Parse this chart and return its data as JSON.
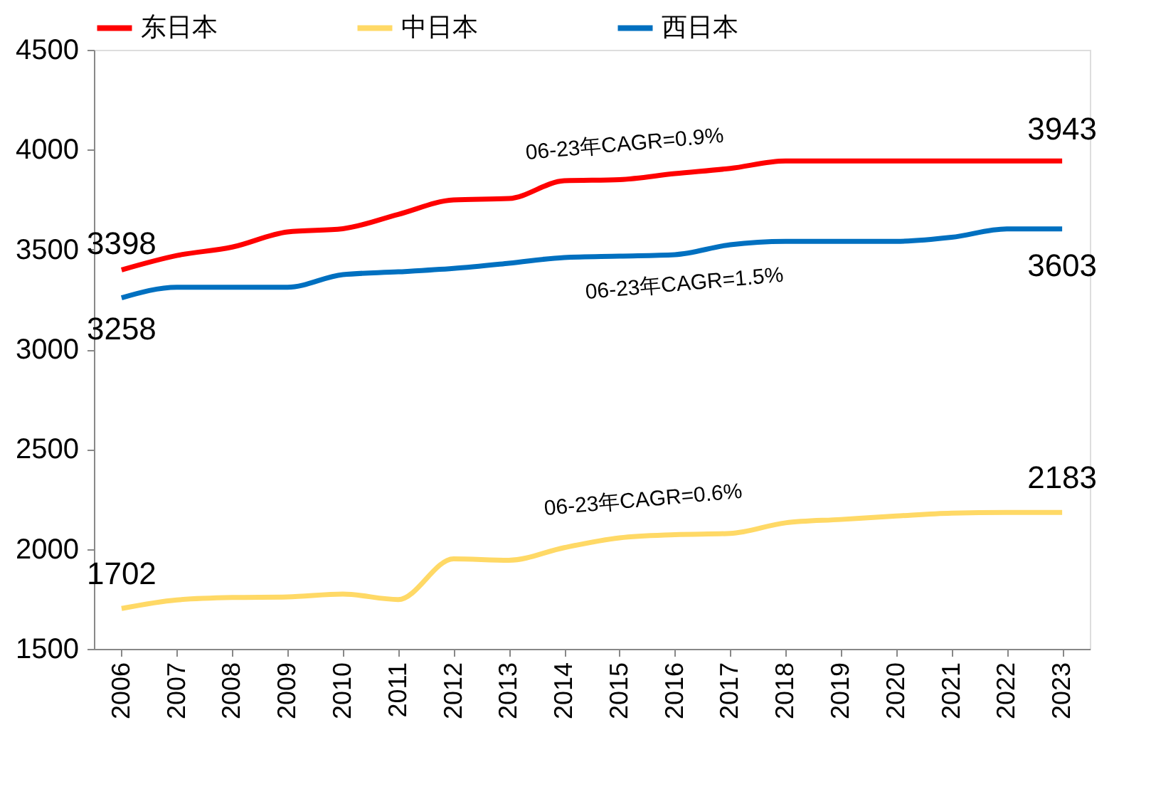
{
  "chart_data": {
    "type": "line",
    "categories": [
      "2006",
      "2007",
      "2008",
      "2009",
      "2010",
      "2011",
      "2012",
      "2013",
      "2014",
      "2015",
      "2016",
      "2017",
      "2018",
      "2019",
      "2020",
      "2021",
      "2022",
      "2023"
    ],
    "series": [
      {
        "name": "东日本",
        "color": "#ff0000",
        "values": [
          3398,
          3470,
          3512,
          3588,
          3604,
          3676,
          3748,
          3755,
          3844,
          3850,
          3880,
          3906,
          3943,
          3943,
          3943,
          3943,
          3943,
          3943
        ]
      },
      {
        "name": "中日本",
        "color": "#ffd966",
        "values": [
          1702,
          1745,
          1757,
          1760,
          1774,
          1747,
          1951,
          1944,
          2007,
          2056,
          2072,
          2078,
          2131,
          2148,
          2165,
          2180,
          2183,
          2183
        ]
      },
      {
        "name": "西日本",
        "color": "#0070c0",
        "values": [
          3258,
          3311,
          3311,
          3311,
          3374,
          3388,
          3405,
          3431,
          3460,
          3467,
          3474,
          3524,
          3541,
          3541,
          3541,
          3561,
          3603,
          3603
        ]
      }
    ],
    "ylim": [
      1500,
      4500
    ],
    "yticks": [
      1500,
      2000,
      2500,
      3000,
      3500,
      4000,
      4500
    ],
    "grid": false,
    "legend": "top",
    "marker": "none",
    "line_style": "solid",
    "annotations": [
      {
        "text": "3398",
        "x": "2006",
        "y": 3398
      },
      {
        "text": "3258",
        "x": "2006",
        "y": 3258
      },
      {
        "text": "3943",
        "x": "2023",
        "y": 3943
      },
      {
        "text": "3603",
        "x": "2023",
        "y": 3603
      },
      {
        "text": "1702",
        "x": "2006",
        "y": 1702
      },
      {
        "text": "2183",
        "x": "2023",
        "y": 2183
      },
      "06-23年CAGR=0.9%",
      "06-23年CAGR=1.5%",
      "06-23年CAGR=0.6%"
    ]
  }
}
